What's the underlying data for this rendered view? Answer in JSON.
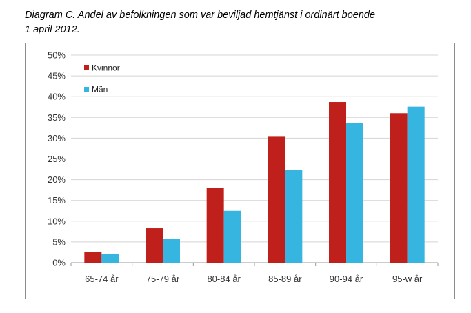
{
  "caption": {
    "line1": "Diagram C. Andel av befolkningen som var beviljad hemtjänst i ordinärt boende",
    "line2": "1 april 2012."
  },
  "chart_data": {
    "type": "bar",
    "title": "",
    "xlabel": "",
    "ylabel": "",
    "ylim": [
      0,
      50
    ],
    "yticks": [
      "0%",
      "5%",
      "10%",
      "15%",
      "20%",
      "25%",
      "30%",
      "35%",
      "40%",
      "45%",
      "50%"
    ],
    "categories": [
      "65-74 år",
      "75-79 år",
      "80-84 år",
      "85-89 år",
      "90-94 år",
      "95-w år"
    ],
    "series": [
      {
        "name": "Kvinnor",
        "color": "#c0201c",
        "values": [
          2.5,
          8.3,
          18.0,
          30.5,
          38.7,
          36.0
        ]
      },
      {
        "name": "Män",
        "color": "#35b5e0",
        "values": [
          2.0,
          5.8,
          12.5,
          22.3,
          33.7,
          37.6
        ]
      }
    ],
    "grid": true,
    "legend": "top-left"
  }
}
